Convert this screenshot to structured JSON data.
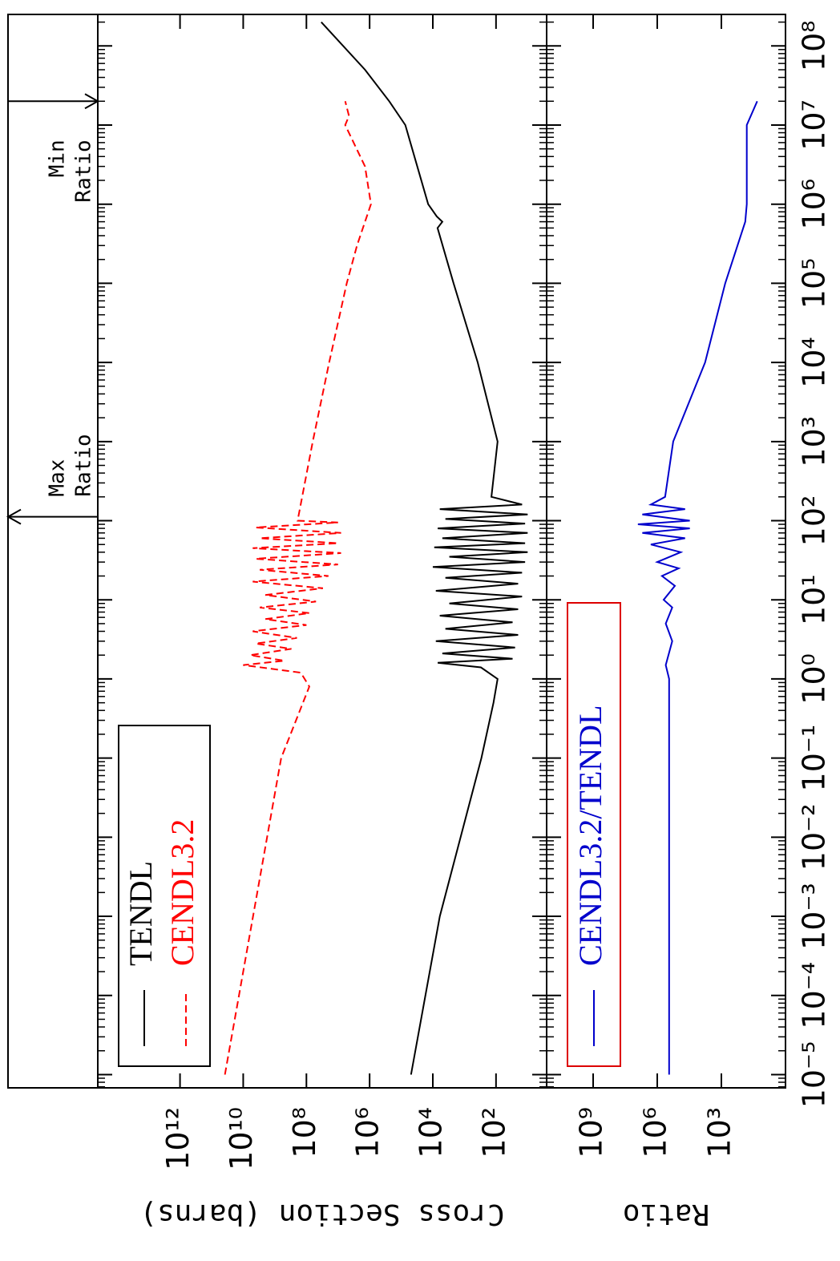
{
  "chart_data": [
    {
      "type": "line",
      "ylabel": "Cross Section (barns)",
      "log_x": true,
      "log_y": true,
      "xlim": [
        6.8e-06,
        250000000.0
      ],
      "ylim": [
        2.5,
        400000000000000.0
      ],
      "yticks": [
        {
          "value": 100.0,
          "label": "10²"
        },
        {
          "value": 10000.0,
          "label": "10⁴"
        },
        {
          "value": 1000000.0,
          "label": "10⁶"
        },
        {
          "value": 100000000.0,
          "label": "10⁸"
        },
        {
          "value": 10000000000.0,
          "label": "10¹⁰"
        },
        {
          "value": 1000000000000.0,
          "label": "10¹²"
        }
      ],
      "legend": "upper left",
      "legend_border": "#000000",
      "series": [
        {
          "name": "TENDL",
          "color": "#000000",
          "style": "solid",
          "x": [
            1e-05,
            0.001,
            0.1,
            0.5,
            1.0,
            1.4,
            1.6,
            1.8,
            2.1,
            2.5,
            3,
            3.6,
            4.3,
            5.2,
            6.3,
            7.6,
            9,
            11,
            13,
            16,
            19,
            22,
            26,
            30,
            35,
            40,
            46,
            52,
            60,
            70,
            80,
            92,
            105,
            120,
            140,
            160,
            200,
            1000,
            10000.0,
            100000.0,
            500000.0,
            600000.0,
            700000.0,
            1000000.0,
            10000000.0,
            20000000.0,
            50000000.0,
            200000000.0
          ],
          "values": [
            49000.0,
            6000.0,
            290,
            120,
            89,
            300,
            7000.0,
            30,
            5000.0,
            25,
            8000.0,
            20,
            4000.0,
            30,
            6000.0,
            20,
            3000.0,
            15,
            8000.0,
            20,
            4000.0,
            15,
            10000.0,
            12,
            3000.0,
            10,
            9000.0,
            12,
            5000.0,
            10,
            7000.0,
            12,
            4000.0,
            10,
            6000.0,
            15,
            140,
            89,
            380,
            2200.0,
            7100.0,
            5000.0,
            7500.0,
            14000.0,
            74000.0,
            240000.0,
            1400000.0,
            34000000.0
          ]
        },
        {
          "name": "CENDL3.2",
          "color": "#ff0000",
          "style": "dashed",
          "x": [
            1e-05,
            0.1,
            0.8,
            1.2,
            1.5,
            1.7,
            2,
            2.4,
            2.8,
            3.3,
            4,
            4.8,
            5.7,
            6.8,
            8,
            9.5,
            11.5,
            14,
            17,
            20,
            24,
            28,
            33,
            39,
            45,
            52,
            60,
            70,
            82,
            95,
            100,
            1000,
            10000.0,
            100000.0,
            300000.0,
            1000000.0,
            3000000.0,
            10000000.0,
            13000000.0,
            20000000.0
          ],
          "values": [
            38000000000.0,
            630000000.0,
            81000000.0,
            150000000.0,
            10000000000.0,
            500000000.0,
            6000000000.0,
            300000000.0,
            4000000000.0,
            200000000.0,
            5000000000.0,
            100000000.0,
            2000000000.0,
            80000000.0,
            3000000000.0,
            50000000.0,
            2000000000.0,
            30000000.0,
            5000000000.0,
            20000000.0,
            3000000000.0,
            10000000.0,
            4000000000.0,
            8000000.0,
            5000000000.0,
            10000000.0,
            3000000000.0,
            8000000.0,
            4000000000.0,
            10000000.0,
            190000000.0,
            63000000.0,
            19000000.0,
            5300000.0,
            2500000.0,
            910000.0,
            1400000.0,
            5900000.0,
            4500000.0,
            5900000.0
          ]
        }
      ],
      "annotations": [
        {
          "text": [
            "Max",
            "Ratio"
          ],
          "x": 112,
          "arrow": "up"
        },
        {
          "text": [
            "Min",
            "Ratio"
          ],
          "x": 20000000.0,
          "arrow": "down"
        }
      ]
    },
    {
      "type": "line",
      "ylabel": "Ratio",
      "log_x": true,
      "log_y": true,
      "xlim": [
        6.8e-06,
        250000000.0
      ],
      "ylim": [
        1,
        150000000000.0
      ],
      "xticks": [
        {
          "value": 1e-05,
          "label": "10⁻⁵"
        },
        {
          "value": 0.0001,
          "label": "10⁻⁴"
        },
        {
          "value": 0.001,
          "label": "10⁻³"
        },
        {
          "value": 0.01,
          "label": "10⁻²"
        },
        {
          "value": 0.1,
          "label": "10⁻¹"
        },
        {
          "value": 1,
          "label": "10⁰"
        },
        {
          "value": 10,
          "label": "10¹"
        },
        {
          "value": 100,
          "label": "10²"
        },
        {
          "value": 1000,
          "label": "10³"
        },
        {
          "value": 10000.0,
          "label": "10⁴"
        },
        {
          "value": 100000.0,
          "label": "10⁵"
        },
        {
          "value": 1000000.0,
          "label": "10⁶"
        },
        {
          "value": 10000000.0,
          "label": "10⁷"
        },
        {
          "value": 100000000.0,
          "label": "10⁸"
        }
      ],
      "yticks": [
        {
          "value": 1000.0,
          "label": "10³"
        },
        {
          "value": 1000000.0,
          "label": "10⁶"
        },
        {
          "value": 1000000000.0,
          "label": "10⁹"
        }
      ],
      "legend": "upper left",
      "legend_border": "#dd0000",
      "series": [
        {
          "name": "CENDL3.2/TENDL",
          "color": "#0000cc",
          "style": "solid",
          "x": [
            1e-05,
            1,
            1.5,
            3,
            5,
            8,
            10,
            15,
            20,
            25,
            30,
            40,
            50,
            60,
            70,
            80,
            90,
            100,
            120,
            140,
            160,
            200,
            1000,
            10000.0,
            100000.0,
            600000.0,
            1000000.0,
            10000000.0,
            20000000.0
          ],
          "values": [
            280000.0,
            280000.0,
            400000.0,
            200000.0,
            400000.0,
            200000.0,
            500000.0,
            150000.0,
            600000.0,
            100000.0,
            1000000.0,
            80000.0,
            2000000.0,
            50000.0,
            5000000.0,
            30000.0,
            8000000.0,
            30000.0,
            5000000.0,
            50000.0,
            2000000.0,
            430000.0,
            180000.0,
            5800.0,
            660.0,
            76,
            65,
            65,
            21
          ]
        }
      ]
    }
  ]
}
